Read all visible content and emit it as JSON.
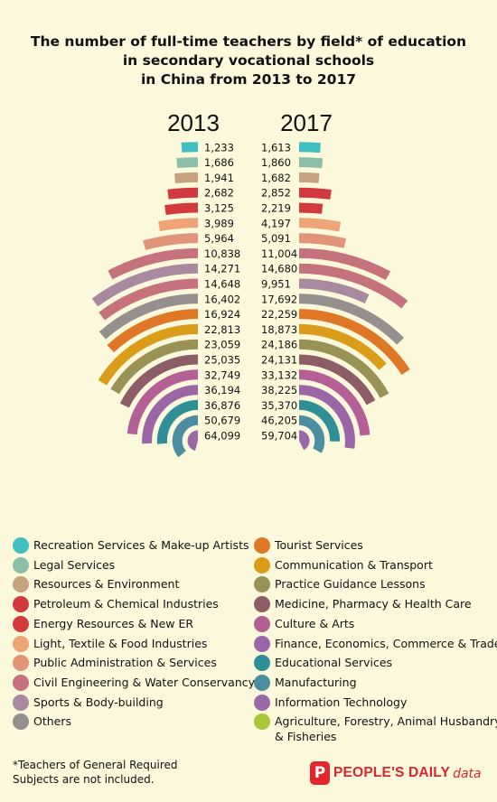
{
  "title_lines": [
    "The number of full-time teachers by field* of education",
    "in secondary vocational schools",
    "in China from 2013 to 2017"
  ],
  "footnote_lines": [
    "*Teachers of General Required",
    "Subjects are not included."
  ],
  "brand": {
    "logo_letter": "P",
    "name": "PEOPLE'S DAILY",
    "suffix": "data"
  },
  "chart_data": {
    "type": "radial-bar",
    "title": "The number of full-time teachers by field* of education in secondary vocational schools in China from 2013 to 2017",
    "years": [
      "2013",
      "2017"
    ],
    "categories": [
      "Recreation Services & Make-up Artists",
      "Legal Services",
      "Resources & Environment",
      "Petroleum & Chemical Industries",
      "Energy Resources & New ER",
      "Light, Textile & Food Industries",
      "Public Administration & Services",
      "Civil Engineering & Water Conservancy",
      "Sports & Body-building",
      "Others",
      "Tourist Services",
      "Communication & Transport",
      "Practice Guidance Lessons",
      "Medicine, Pharmacy & Health Care",
      "Culture & Arts",
      "Finance, Economics, Commerce & Trade",
      "Educational Services",
      "Manufacturing",
      "Information Technology",
      "Agriculture, Forestry, Animal Husbandry & Fisheries"
    ],
    "colors": [
      "#3fbfc0",
      "#8bbfa8",
      "#c7a27e",
      "#d2393f",
      "#d23a3c",
      "#eea477",
      "#e29478",
      "#c5727c",
      "#a9899f",
      "#958f8e",
      "#e07726",
      "#d99d1a",
      "#9a9255",
      "#8c5d65",
      "#b45f95",
      "#9a66a5",
      "#2f8f96",
      "#4b8ea0",
      "#9a6aa8",
      "#a8c83a"
    ],
    "rows": [
      {
        "v2013": 1233,
        "c2013": 0,
        "v2017": 1613,
        "c2017": 0
      },
      {
        "v2013": 1686,
        "c2013": 1,
        "v2017": 1860,
        "c2017": 1
      },
      {
        "v2013": 1941,
        "c2013": 2,
        "v2017": 1682,
        "c2017": 2
      },
      {
        "v2013": 2682,
        "c2013": 3,
        "v2017": 2852,
        "c2017": 3
      },
      {
        "v2013": 3125,
        "c2013": 4,
        "v2017": 2219,
        "c2017": 4
      },
      {
        "v2013": 3989,
        "c2013": 5,
        "v2017": 4197,
        "c2017": 5
      },
      {
        "v2013": 5964,
        "c2013": 6,
        "v2017": 5091,
        "c2017": 6
      },
      {
        "v2013": 10838,
        "c2013": 7,
        "v2017": 11004,
        "c2017": 7
      },
      {
        "v2013": 14271,
        "c2013": 8,
        "v2017": 14680,
        "c2017": 7
      },
      {
        "v2013": 14648,
        "c2013": 7,
        "v2017": 9951,
        "c2017": 8
      },
      {
        "v2013": 16402,
        "c2013": 9,
        "v2017": 17692,
        "c2017": 9
      },
      {
        "v2013": 16924,
        "c2013": 10,
        "v2017": 22259,
        "c2017": 10
      },
      {
        "v2013": 22813,
        "c2013": 11,
        "v2017": 18873,
        "c2017": 11
      },
      {
        "v2013": 23059,
        "c2013": 12,
        "v2017": 24186,
        "c2017": 12
      },
      {
        "v2013": 25035,
        "c2013": 13,
        "v2017": 24131,
        "c2017": 13
      },
      {
        "v2013": 32749,
        "c2013": 14,
        "v2017": 33132,
        "c2017": 14
      },
      {
        "v2013": 36194,
        "c2013": 15,
        "v2017": 38225,
        "c2017": 15
      },
      {
        "v2013": 36876,
        "c2013": 16,
        "v2017": 35370,
        "c2017": 16
      },
      {
        "v2013": 50679,
        "c2013": 17,
        "v2017": 46205,
        "c2017": 17
      },
      {
        "v2013": 64099,
        "c2013": 18,
        "v2017": 59704,
        "c2017": 18
      }
    ]
  },
  "legend": {
    "left": [
      "Recreation Services & Make-up Artists",
      "Legal Services",
      "Resources & Environment",
      "Petroleum & Chemical Industries",
      "Energy Resources & New ER",
      "Light, Textile & Food Industries",
      "Public Administration & Services",
      "Civil Engineering & Water Conservancy",
      "Sports & Body-building",
      "Others"
    ],
    "right": [
      "Tourist Services",
      "Communication & Transport",
      "Practice Guidance Lessons",
      "Medicine, Pharmacy & Health Care",
      "Culture & Arts",
      "Finance, Economics, Commerce & Trade",
      "Educational Services",
      "Manufacturing",
      "Information Technology",
      "Agriculture, Forestry, Animal Husbandry",
      "& Fisheries"
    ],
    "left_colors": [
      "#3fbfc0",
      "#8bbfa8",
      "#c7a27e",
      "#d2393f",
      "#d23a3c",
      "#eea477",
      "#e29478",
      "#c5727c",
      "#a9899f",
      "#958f8e"
    ],
    "right_colors": [
      "#e07726",
      "#d99d1a",
      "#9a9255",
      "#8c5d65",
      "#b45f95",
      "#9a66a5",
      "#2f8f96",
      "#4b8ea0",
      "#9a6aa8",
      "#a8c83a"
    ]
  }
}
